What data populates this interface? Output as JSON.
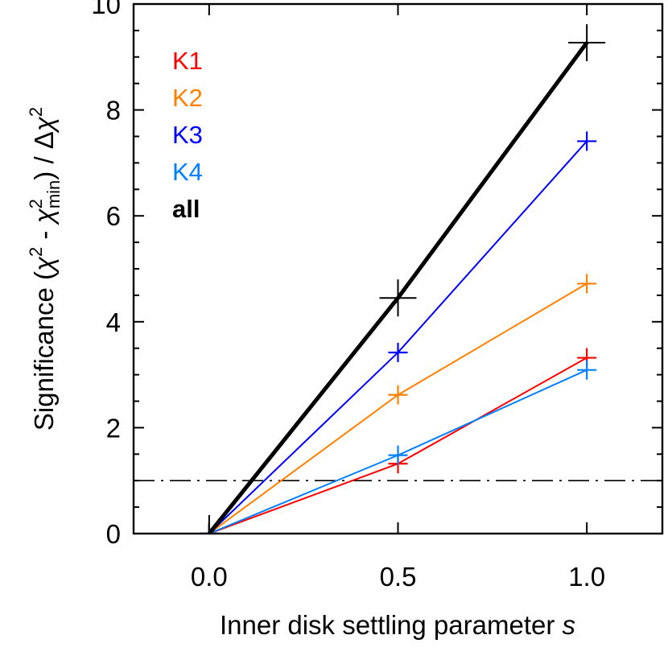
{
  "chart_data": {
    "type": "line",
    "title": "",
    "xlabel": "Inner disk settling parameter s",
    "xlabel_parts": {
      "main": "Inner disk settling parameter ",
      "italic": "s"
    },
    "ylabel": "Significance (χ² - χ²min) / Δχ²",
    "ylabel_parts": {
      "prefix": "Significance (",
      "chi1": "χ",
      "sup1": "2",
      "minus": " - ",
      "chi2": "χ",
      "sup2": "2",
      "sub2": "min",
      "suffix": ") / Δ",
      "chi3": "χ",
      "sup3": "2"
    },
    "x": [
      0.0,
      0.5,
      1.0
    ],
    "xlim": [
      -0.2,
      1.2
    ],
    "ylim": [
      0,
      10
    ],
    "xticks": [
      0.0,
      0.5,
      1.0
    ],
    "xtick_labels": [
      "0.0",
      "0.5",
      "1.0"
    ],
    "yticks": [
      0,
      2,
      4,
      6,
      8,
      10
    ],
    "ytick_labels": [
      "0",
      "2",
      "4",
      "6",
      "8",
      "10"
    ],
    "yminor_step": 0.5,
    "grid": false,
    "legend_position": "upper left",
    "series": [
      {
        "name": "K1",
        "color": "#ff0000",
        "values": [
          0,
          1.32,
          3.32
        ],
        "line_width": 2,
        "marker": "plus",
        "marker_size": 12
      },
      {
        "name": "K2",
        "color": "#ff8000",
        "values": [
          0,
          2.62,
          4.72
        ],
        "line_width": 2,
        "marker": "plus",
        "marker_size": 12
      },
      {
        "name": "K3",
        "color": "#0000ff",
        "values": [
          0,
          3.42,
          7.41
        ],
        "line_width": 2,
        "marker": "plus",
        "marker_size": 12
      },
      {
        "name": "K4",
        "color": "#0080ff",
        "values": [
          0,
          1.48,
          3.09
        ],
        "line_width": 2,
        "marker": "plus",
        "marker_size": 12
      },
      {
        "name": "all",
        "color": "#000000",
        "values": [
          0,
          4.45,
          9.27
        ],
        "line_width": 5,
        "marker": "plus",
        "marker_size": 23,
        "bold_label": true
      }
    ],
    "reference_lines": [
      {
        "axis": "y",
        "value": 1.0,
        "style": "dash-dot",
        "color": "#000000"
      }
    ]
  }
}
